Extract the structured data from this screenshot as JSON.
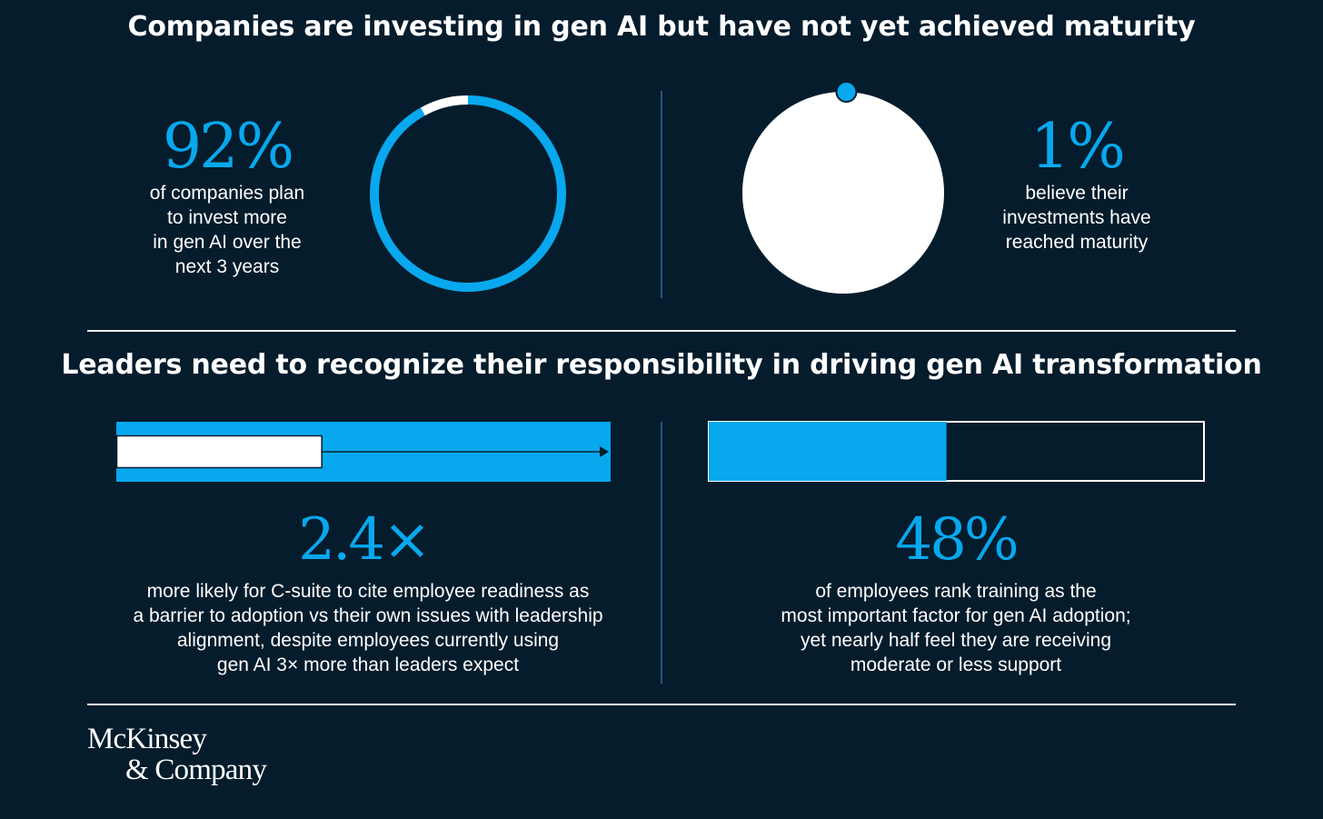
{
  "headings": {
    "top": "Companies are investing in gen AI but have not yet achieved maturity",
    "bottom": "Leaders need to recognize their responsibility in driving gen AI transformation"
  },
  "stats": {
    "invest": {
      "value": "92%",
      "description": "of companies plan\nto invest more\nin gen AI over the\nnext 3 years"
    },
    "maturity": {
      "value": "1%",
      "description": "believe their\ninvestments have\nreached maturity"
    },
    "csuite": {
      "value": "2.4×",
      "description": "more likely for C-suite to cite employee readiness as\na barrier to adoption vs their own issues with leadership\nalignment, despite employees currently using\ngen AI 3× more than leaders expect"
    },
    "training": {
      "value": "48%",
      "description": "of employees rank training as the\nmost important factor for gen AI adoption;\nyet nearly half feel they are receiving\nmoderate or less support"
    }
  },
  "logo": {
    "line1": "McKinsey",
    "line2": "& Company"
  },
  "colors": {
    "background": "#051c2c",
    "accent": "#08a8ee",
    "white": "#ffffff"
  },
  "chart_data": [
    {
      "type": "pie",
      "name": "invest-donut",
      "style": "donut",
      "values": [
        92,
        8
      ],
      "colors": [
        "#08a8ee",
        "#ffffff"
      ]
    },
    {
      "type": "pie",
      "name": "maturity-circle",
      "values": [
        1,
        99
      ],
      "colors": [
        "#08a8ee",
        "#ffffff"
      ]
    },
    {
      "type": "bar",
      "name": "csuite-ratio",
      "orientation": "horizontal",
      "values": [
        2.4,
        1
      ],
      "colors": [
        "#08a8ee",
        "#ffffff"
      ]
    },
    {
      "type": "bar",
      "name": "training-share",
      "orientation": "horizontal",
      "values": [
        48
      ],
      "xlim": [
        0,
        100
      ],
      "colors": [
        "#08a8ee"
      ]
    }
  ]
}
